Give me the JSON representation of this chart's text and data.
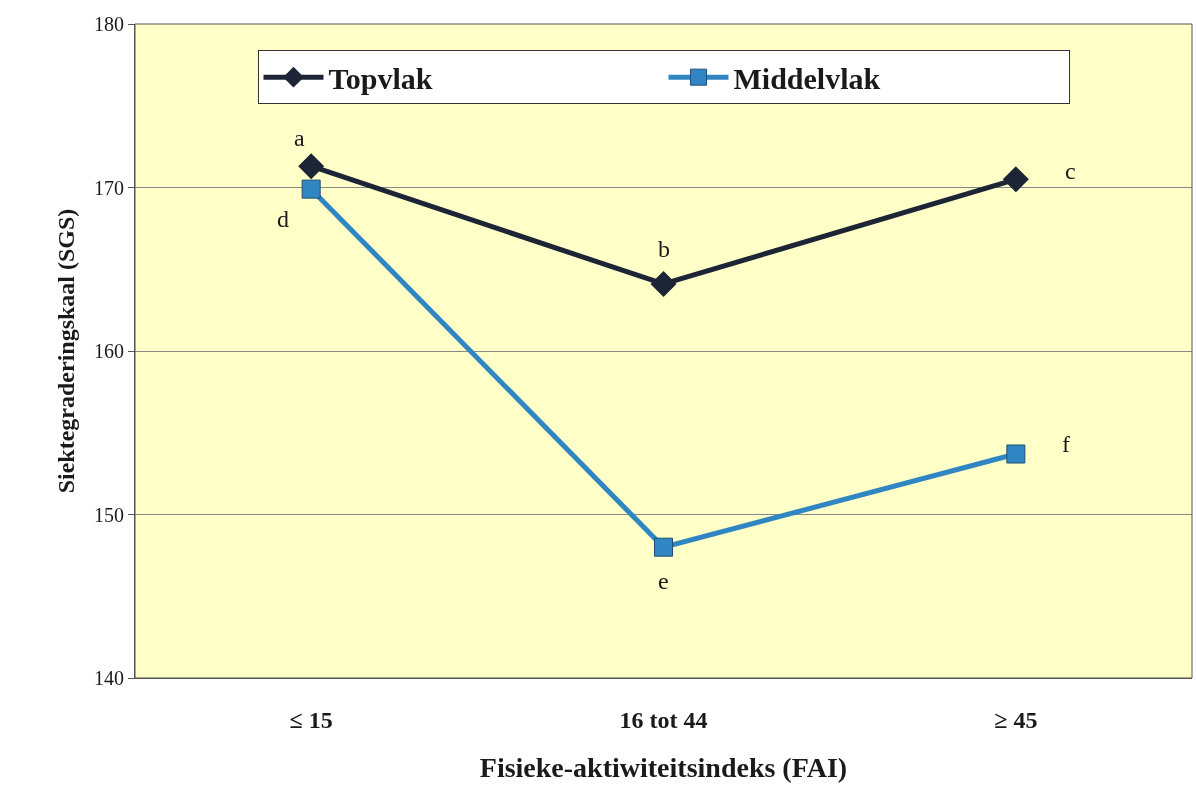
{
  "chart_data": {
    "type": "line",
    "xlabel": "Fisieke-aktiwiteitsindeks (FAI)",
    "ylabel": "Siektegraderingskaal (SGS)",
    "categories": [
      "≤ 15",
      "16 tot 44",
      "≥ 45"
    ],
    "series": [
      {
        "name": "Topvlak",
        "color": "#1c2436",
        "marker": "diamond",
        "values": [
          171.3,
          164.1,
          170.5
        ]
      },
      {
        "name": "Middelvlak",
        "color": "#2f86c3",
        "marker": "square",
        "values": [
          169.9,
          148.0,
          153.7
        ]
      }
    ],
    "ylim": [
      140,
      180
    ],
    "yticks": [
      140,
      150,
      160,
      170,
      180
    ],
    "grid": "y",
    "legend": "top",
    "line_style": "solid",
    "annotations": [
      {
        "text": "a",
        "x": "≤ 15",
        "y": 171.3
      },
      {
        "text": "b",
        "x": "16 tot 44",
        "y": 164.1
      },
      {
        "text": "c",
        "x": "≥ 45",
        "y": 170.5
      },
      {
        "text": "d",
        "x": "≤ 15",
        "y": 169.9
      },
      {
        "text": "e",
        "x": "16 tot 44",
        "y": 148.0
      },
      {
        "text": "f",
        "x": "≥ 45",
        "y": 153.7
      }
    ]
  }
}
